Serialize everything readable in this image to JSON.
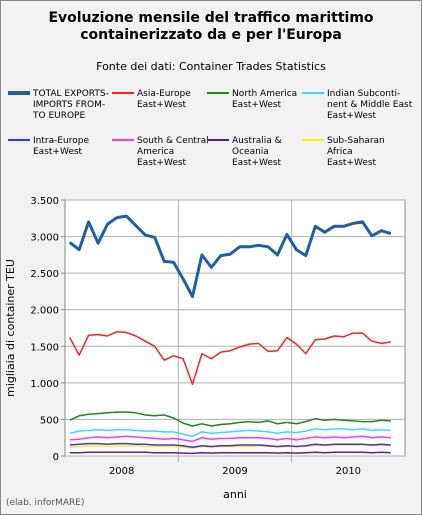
{
  "chart_data": {
    "type": "line",
    "title": "Evoluzione mensile del traffico marittimo\ncontainerizzato da e per l'Europa",
    "subtitle": "Fonte dei dati: Container Trades Statistics",
    "y_label": "migliaia di container TEU",
    "x_label": "anni",
    "note": "(elab. inforMARE)",
    "categories": [
      null,
      null,
      null,
      null,
      null,
      "2008",
      null,
      null,
      null,
      null,
      null,
      null,
      null,
      null,
      null,
      null,
      null,
      "2009",
      null,
      null,
      null,
      null,
      null,
      null,
      null,
      null,
      null,
      null,
      null,
      "2010",
      null,
      null,
      null,
      null,
      null,
      null
    ],
    "ylim": [
      0,
      3500
    ],
    "yticks": [
      0,
      500,
      {
        "value": 1000,
        "label": "1.000"
      },
      {
        "value": 1500,
        "label": "1.500"
      },
      {
        "value": 2000,
        "label": "2.000"
      },
      {
        "value": 2500,
        "label": "2.500"
      },
      {
        "value": 3000,
        "label": "3.000"
      },
      {
        "value": 3500,
        "label": "3.500"
      }
    ],
    "grid": true,
    "series": [
      {
        "name": "TOTAL EXPORTS-\nIMPORTS FROM-\nTO EUROPE",
        "color": "#1f5fa8",
        "values": [
          2920,
          2820,
          3200,
          2910,
          3170,
          3260,
          3280,
          3150,
          3020,
          2990,
          2660,
          2650,
          2420,
          2180,
          2750,
          2580,
          2740,
          2760,
          2860,
          2860,
          2880,
          2860,
          2750,
          3030,
          2820,
          2740,
          3140,
          3060,
          3140,
          3140,
          3180,
          3200,
          3010,
          3080,
          3040,
          null
        ]
      },
      {
        "name": "Asia-Europe\nEast+West",
        "color": "#ff2020",
        "values": [
          1620,
          1380,
          1650,
          1660,
          1640,
          1700,
          1690,
          1640,
          1570,
          1500,
          1310,
          1370,
          1330,
          980,
          1400,
          1330,
          1420,
          1440,
          1490,
          1530,
          1540,
          1430,
          1440,
          1620,
          1530,
          1400,
          1590,
          1600,
          1640,
          1630,
          1680,
          1680,
          1570,
          1540,
          1560,
          null
        ]
      },
      {
        "name": "North America\nEast+West",
        "color": "#1a8a1a",
        "values": [
          490,
          550,
          570,
          580,
          590,
          600,
          600,
          590,
          560,
          550,
          560,
          520,
          450,
          410,
          440,
          410,
          430,
          440,
          460,
          470,
          460,
          480,
          440,
          460,
          440,
          470,
          510,
          490,
          500,
          490,
          480,
          470,
          470,
          490,
          480,
          null
        ]
      },
      {
        "name": "Indian Subconti-\nnent & Middle East\nEast+West",
        "color": "#33ddff",
        "values": [
          310,
          340,
          350,
          360,
          350,
          360,
          360,
          350,
          340,
          340,
          330,
          330,
          300,
          270,
          330,
          310,
          320,
          330,
          340,
          350,
          340,
          330,
          310,
          330,
          320,
          340,
          370,
          360,
          370,
          370,
          360,
          370,
          350,
          360,
          350,
          null
        ]
      },
      {
        "name": "Intra-Europe\nEast+West",
        "color": "#3333ff",
        "values": [
          150,
          160,
          170,
          170,
          160,
          170,
          170,
          160,
          160,
          150,
          150,
          150,
          140,
          120,
          140,
          130,
          140,
          140,
          150,
          150,
          150,
          140,
          130,
          140,
          130,
          140,
          160,
          150,
          160,
          160,
          160,
          160,
          150,
          160,
          150,
          null
        ]
      },
      {
        "name": "South & Central\nAmerica\nEast+West",
        "color": "#ff33ff",
        "values": [
          220,
          230,
          250,
          260,
          250,
          260,
          270,
          260,
          250,
          240,
          230,
          240,
          220,
          200,
          250,
          230,
          240,
          240,
          250,
          250,
          250,
          240,
          220,
          240,
          220,
          240,
          260,
          250,
          260,
          250,
          260,
          270,
          250,
          260,
          250,
          null
        ]
      },
      {
        "name": "Australia &\nOceania\nEast+West",
        "color": "#6a1a8a",
        "values": [
          45,
          45,
          50,
          50,
          50,
          50,
          50,
          50,
          50,
          45,
          45,
          45,
          40,
          35,
          45,
          40,
          45,
          45,
          45,
          45,
          45,
          45,
          40,
          45,
          40,
          45,
          50,
          45,
          50,
          50,
          50,
          50,
          45,
          50,
          45,
          null
        ]
      },
      {
        "name": "Sub-Saharan\nAfrica\nEast+West",
        "color": "#ffee00",
        "values": [
          120,
          130,
          140,
          140,
          130,
          140,
          140,
          140,
          130,
          130,
          130,
          130,
          120,
          110,
          130,
          120,
          130,
          130,
          130,
          130,
          140,
          130,
          120,
          130,
          130,
          130,
          150,
          140,
          150,
          150,
          150,
          150,
          140,
          150,
          140,
          null
        ]
      }
    ]
  }
}
